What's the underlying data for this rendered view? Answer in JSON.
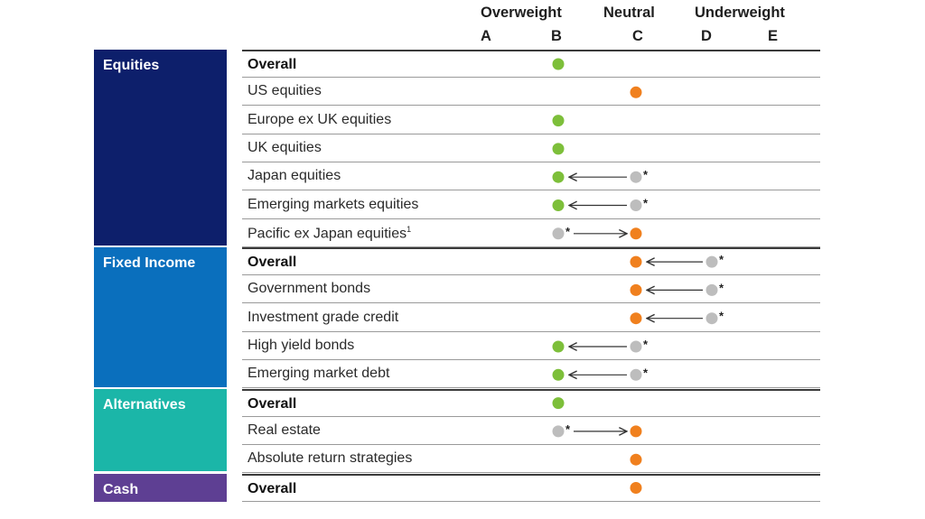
{
  "chart_data": {
    "type": "table",
    "headers": {
      "groups": [
        "Overweight",
        "Neutral",
        "Underweight"
      ],
      "columns": [
        "A",
        "B",
        "C",
        "D",
        "E"
      ]
    },
    "colors": {
      "current_overweight": "#7dbf3a",
      "current_neutral": "#f0801e",
      "previous": "#bdbdbd",
      "Equities": "#0d1f6b",
      "Fixed Income": "#0a6fbd",
      "Alternatives": "#1bb6a8",
      "Cash": "#5e3f93"
    },
    "sections": [
      {
        "name": "Equities",
        "rows": [
          {
            "label": "Overall",
            "bold": true,
            "current": "B",
            "previous": null
          },
          {
            "label": "US equities",
            "bold": false,
            "current": "C",
            "previous": null
          },
          {
            "label": "Europe ex UK equities",
            "bold": false,
            "current": "B",
            "previous": null
          },
          {
            "label": "UK equities",
            "bold": false,
            "current": "B",
            "previous": null
          },
          {
            "label": "Japan equities",
            "bold": false,
            "current": "B",
            "previous": "C"
          },
          {
            "label": "Emerging markets equities",
            "bold": false,
            "current": "B",
            "previous": "C"
          },
          {
            "label": "Pacific ex Japan equities",
            "footnote": "1",
            "bold": false,
            "current": "C",
            "previous": "B"
          }
        ]
      },
      {
        "name": "Fixed Income",
        "rows": [
          {
            "label": "Overall",
            "bold": true,
            "current": "C",
            "previous": "D"
          },
          {
            "label": "Government bonds",
            "bold": false,
            "current": "C",
            "previous": "D"
          },
          {
            "label": "Investment grade credit",
            "bold": false,
            "current": "C",
            "previous": "D"
          },
          {
            "label": "High yield bonds",
            "bold": false,
            "current": "B",
            "previous": "C"
          },
          {
            "label": "Emerging market debt",
            "bold": false,
            "current": "B",
            "previous": "C"
          }
        ]
      },
      {
        "name": "Alternatives",
        "rows": [
          {
            "label": "Overall",
            "bold": true,
            "current": "B",
            "previous": null
          },
          {
            "label": "Real estate",
            "bold": false,
            "current": "C",
            "previous": "B"
          },
          {
            "label": "Absolute return strategies",
            "bold": false,
            "current": "C",
            "previous": null
          }
        ]
      },
      {
        "name": "Cash",
        "rows": [
          {
            "label": "Overall",
            "bold": true,
            "current": "C",
            "previous": null
          }
        ]
      }
    ],
    "previous_marker_symbol": "*"
  }
}
